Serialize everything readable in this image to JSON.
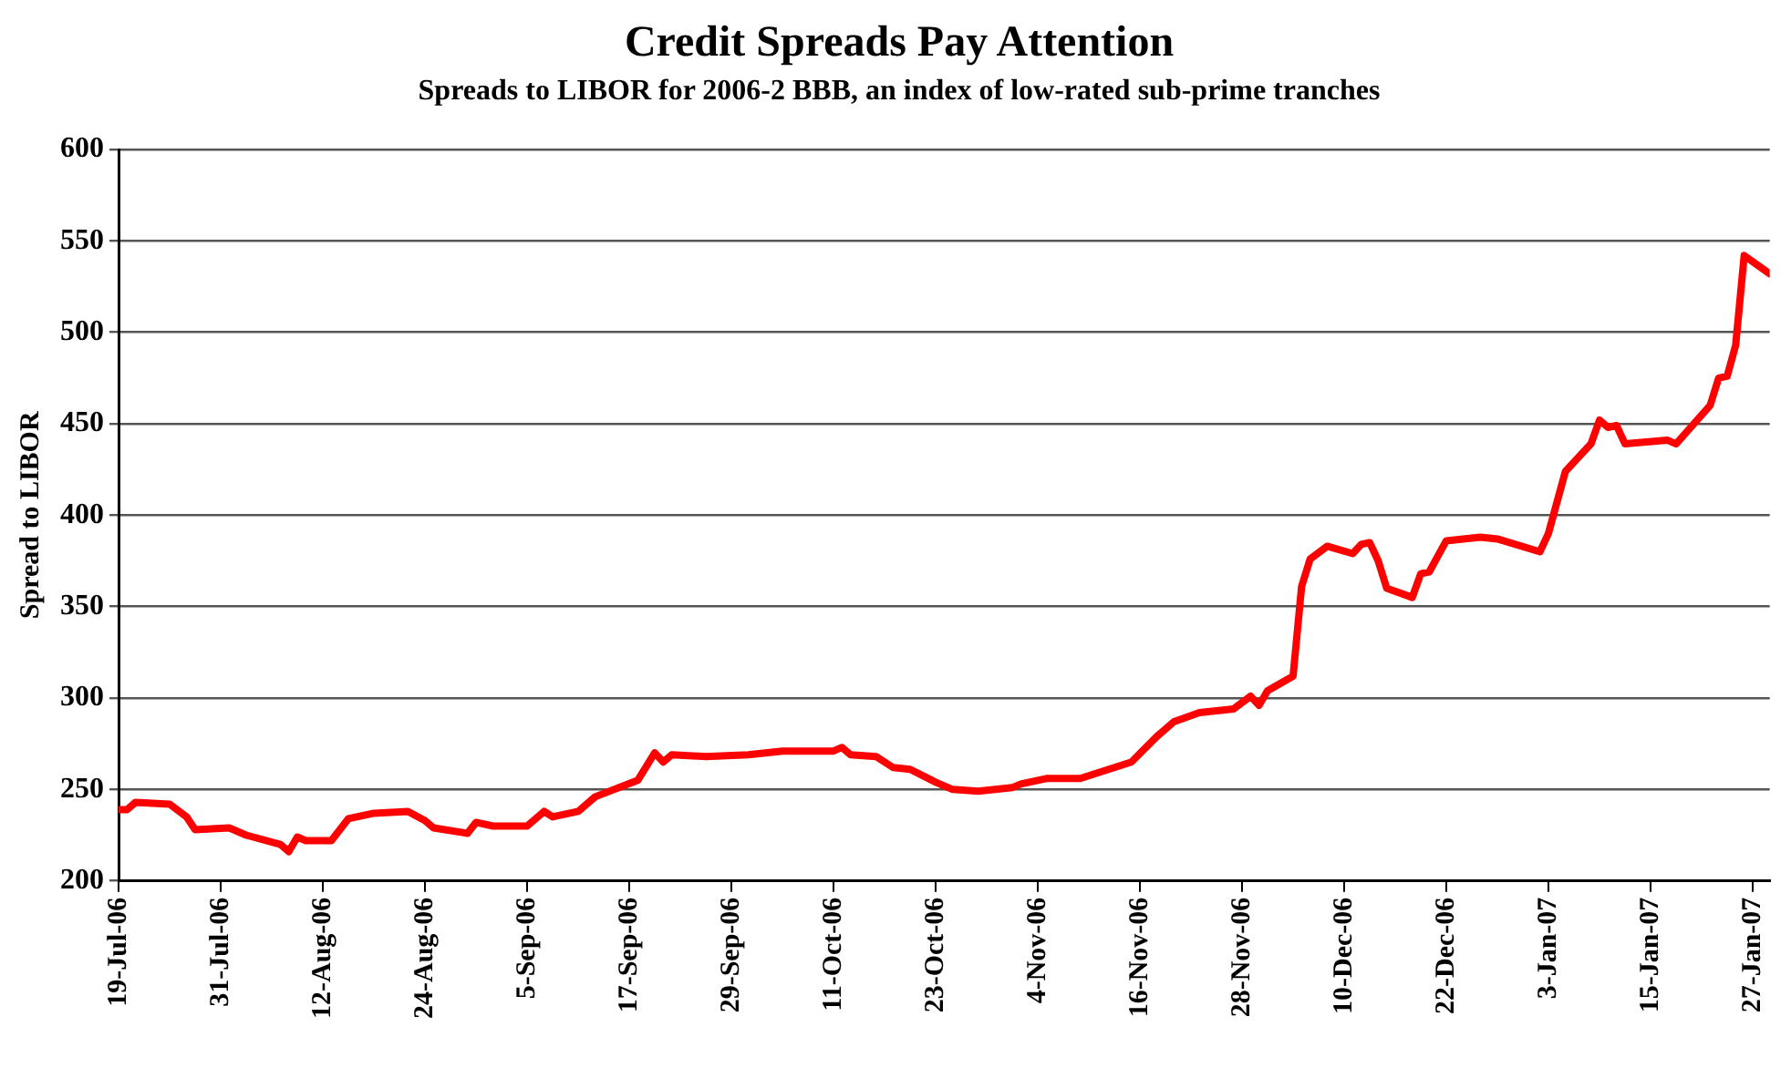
{
  "chart_data": {
    "type": "line",
    "title": "Credit Spreads Pay Attention",
    "subtitle": "Spreads to LIBOR for 2006-2 BBB, an index of low-rated sub-prime tranches",
    "ylabel": "Spread to LIBOR",
    "xlim": [
      "2006-07-19",
      "2007-01-29"
    ],
    "xticks": [
      {
        "value": "2006-07-19",
        "label": "19-Jul-06"
      },
      {
        "value": "2006-07-31",
        "label": "31-Jul-06"
      },
      {
        "value": "2006-08-12",
        "label": "12-Aug-06"
      },
      {
        "value": "2006-08-24",
        "label": "24-Aug-06"
      },
      {
        "value": "2006-09-05",
        "label": "5-Sep-06"
      },
      {
        "value": "2006-09-17",
        "label": "17-Sep-06"
      },
      {
        "value": "2006-09-29",
        "label": "29-Sep-06"
      },
      {
        "value": "2006-10-11",
        "label": "11-Oct-06"
      },
      {
        "value": "2006-10-23",
        "label": "23-Oct-06"
      },
      {
        "value": "2006-11-04",
        "label": "4-Nov-06"
      },
      {
        "value": "2006-11-16",
        "label": "16-Nov-06"
      },
      {
        "value": "2006-11-28",
        "label": "28-Nov-06"
      },
      {
        "value": "2006-12-10",
        "label": "10-Dec-06"
      },
      {
        "value": "2006-12-22",
        "label": "22-Dec-06"
      },
      {
        "value": "2007-01-03",
        "label": "3-Jan-07"
      },
      {
        "value": "2007-01-15",
        "label": "15-Jan-07"
      },
      {
        "value": "2007-01-27",
        "label": "27-Jan-07"
      }
    ],
    "ylim": [
      200,
      600
    ],
    "yticks": [
      200,
      250,
      300,
      350,
      400,
      450,
      500,
      550,
      600
    ],
    "grid": "y",
    "legend": false,
    "marker": "none",
    "line_style": "solid",
    "x": [
      "2006-07-19",
      "2006-07-20",
      "2006-07-21",
      "2006-07-25",
      "2006-07-27",
      "2006-07-28",
      "2006-08-01",
      "2006-08-03",
      "2006-08-07",
      "2006-08-08",
      "2006-08-09",
      "2006-08-10",
      "2006-08-13",
      "2006-08-15",
      "2006-08-18",
      "2006-08-22",
      "2006-08-24",
      "2006-08-25",
      "2006-08-29",
      "2006-08-30",
      "2006-09-01",
      "2006-09-05",
      "2006-09-07",
      "2006-09-08",
      "2006-09-11",
      "2006-09-13",
      "2006-09-18",
      "2006-09-20",
      "2006-09-21",
      "2006-09-22",
      "2006-09-26",
      "2006-10-01",
      "2006-10-05",
      "2006-10-11",
      "2006-10-12",
      "2006-10-13",
      "2006-10-16",
      "2006-10-18",
      "2006-10-20",
      "2006-10-23",
      "2006-10-25",
      "2006-10-28",
      "2006-11-01",
      "2006-11-02",
      "2006-11-05",
      "2006-11-09",
      "2006-11-15",
      "2006-11-18",
      "2006-11-20",
      "2006-11-23",
      "2006-11-27",
      "2006-11-29",
      "2006-11-30",
      "2006-12-01",
      "2006-12-04",
      "2006-12-05",
      "2006-12-06",
      "2006-12-08",
      "2006-12-11",
      "2006-12-12",
      "2006-12-13",
      "2006-12-14",
      "2006-12-15",
      "2006-12-18",
      "2006-12-19",
      "2006-12-20",
      "2006-12-22",
      "2006-12-26",
      "2006-12-28",
      "2007-01-02",
      "2007-01-03",
      "2007-01-05",
      "2007-01-08",
      "2007-01-09",
      "2007-01-10",
      "2007-01-11",
      "2007-01-12",
      "2007-01-17",
      "2007-01-18",
      "2007-01-22",
      "2007-01-23",
      "2007-01-24",
      "2007-01-25",
      "2007-01-26",
      "2007-01-29"
    ],
    "series": [
      {
        "color": "#ff0000",
        "values": [
          239,
          239,
          243,
          242,
          235,
          228,
          229,
          225,
          220,
          216,
          224,
          222,
          222,
          234,
          237,
          238,
          233,
          229,
          226,
          232,
          230,
          230,
          238,
          235,
          238,
          246,
          255,
          270,
          265,
          269,
          268,
          269,
          271,
          271,
          273,
          269,
          268,
          262,
          261,
          254,
          250,
          249,
          251,
          253,
          256,
          256,
          265,
          279,
          287,
          292,
          294,
          301,
          296,
          304,
          312,
          361,
          376,
          383,
          379,
          384,
          385,
          375,
          360,
          355,
          368,
          369,
          386,
          388,
          387,
          380,
          390,
          424,
          439,
          452,
          448,
          449,
          439,
          441,
          439,
          460,
          475,
          476,
          493,
          542,
          532
        ]
      }
    ]
  }
}
